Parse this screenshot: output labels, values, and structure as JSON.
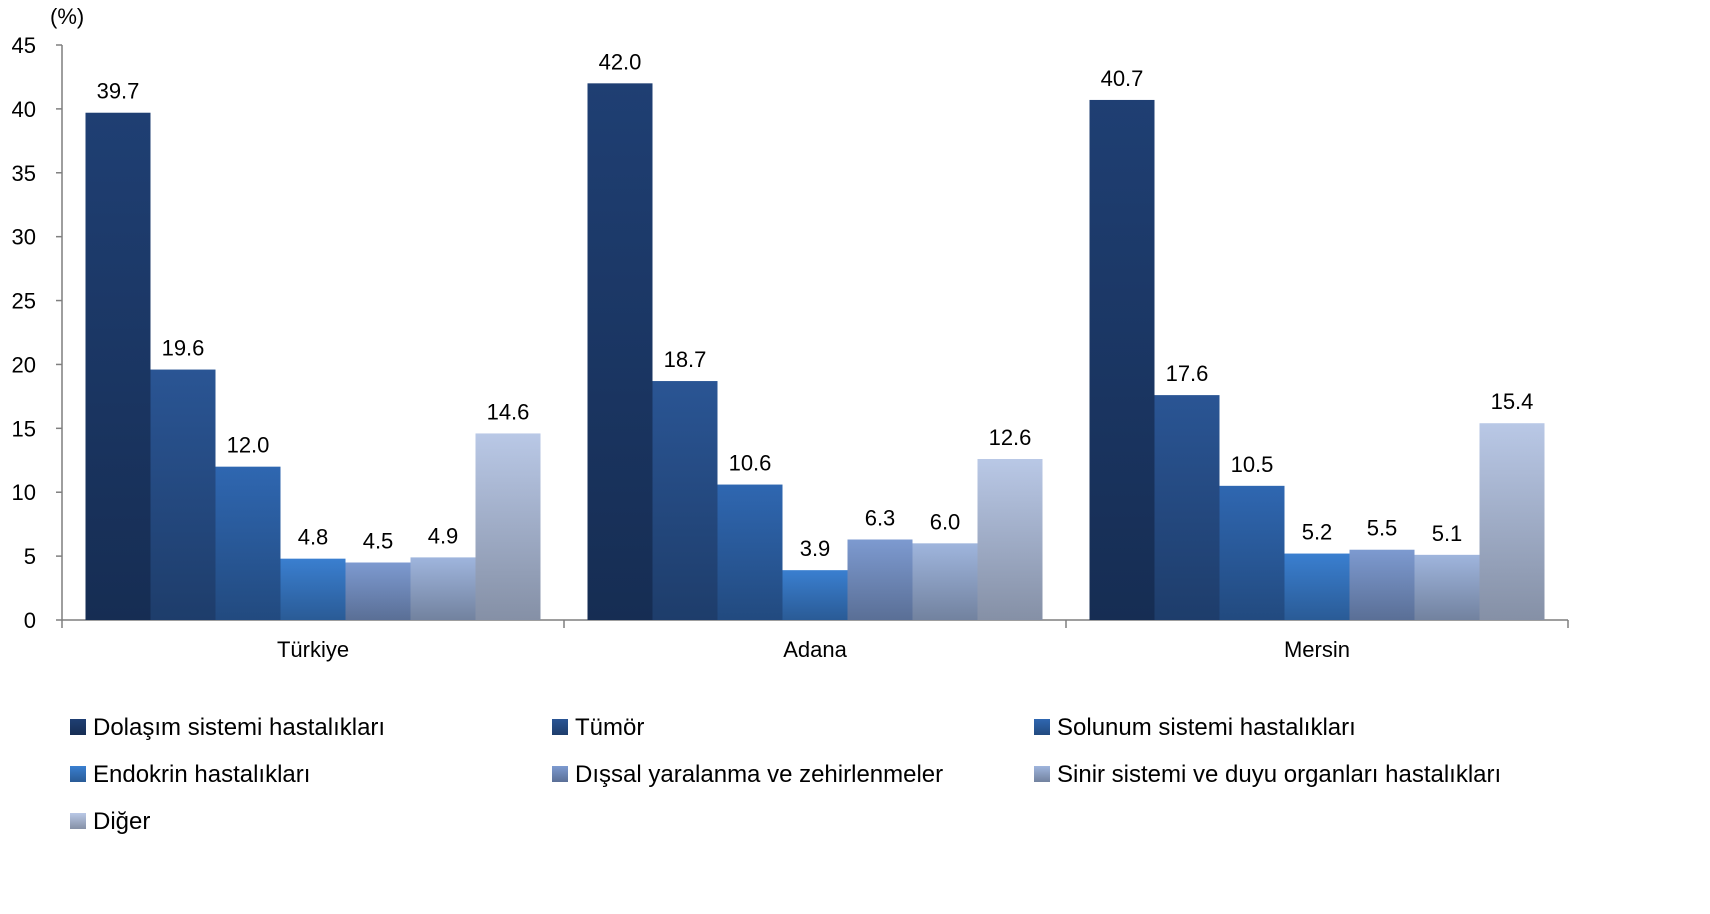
{
  "chart_data": {
    "type": "bar",
    "unit_label": "(%)",
    "ylim": [
      0,
      45
    ],
    "yticks": [
      0,
      5,
      10,
      15,
      20,
      25,
      30,
      35,
      40,
      45
    ],
    "grid": false,
    "legend_position": "bottom",
    "categories": [
      "Türkiye",
      "Adana",
      "Mersin"
    ],
    "series": [
      {
        "name": "Dolaşım sistemi hastalıkları",
        "values": [
          39.7,
          42.0,
          40.7
        ],
        "value_labels": [
          "39.7",
          "42.0",
          "40.7"
        ],
        "color": "#1f3f73"
      },
      {
        "name": "Tümör",
        "values": [
          19.6,
          18.7,
          17.6
        ],
        "value_labels": [
          "19.6",
          "18.7",
          "17.6"
        ],
        "color": "#2a5594"
      },
      {
        "name": "Solunum sistemi hastalıkları",
        "values": [
          12.0,
          10.6,
          10.5
        ],
        "value_labels": [
          "12.0",
          "10.6",
          "10.5"
        ],
        "color": "#2f67b1"
      },
      {
        "name": "Endokrin hastalıkları",
        "values": [
          4.8,
          3.9,
          5.2
        ],
        "value_labels": [
          "4.8",
          "3.9",
          "5.2"
        ],
        "color": "#3a7fd0"
      },
      {
        "name": "Dışsal yaralanma ve zehirlenmeler",
        "values": [
          4.5,
          6.3,
          5.5
        ],
        "value_labels": [
          "4.5",
          "6.3",
          "5.5"
        ],
        "color": "#7d9ad0"
      },
      {
        "name": "Sinir sistemi ve duyu organları hastalıkları",
        "values": [
          4.9,
          6.0,
          5.1
        ],
        "value_labels": [
          "4.9",
          "6.0",
          "5.1"
        ],
        "color": "#9fb5dd"
      },
      {
        "name": "Diğer",
        "values": [
          14.6,
          12.6,
          15.4
        ],
        "value_labels": [
          "14.6",
          "12.6",
          "15.4"
        ],
        "color": "#b9c8e6"
      }
    ]
  }
}
